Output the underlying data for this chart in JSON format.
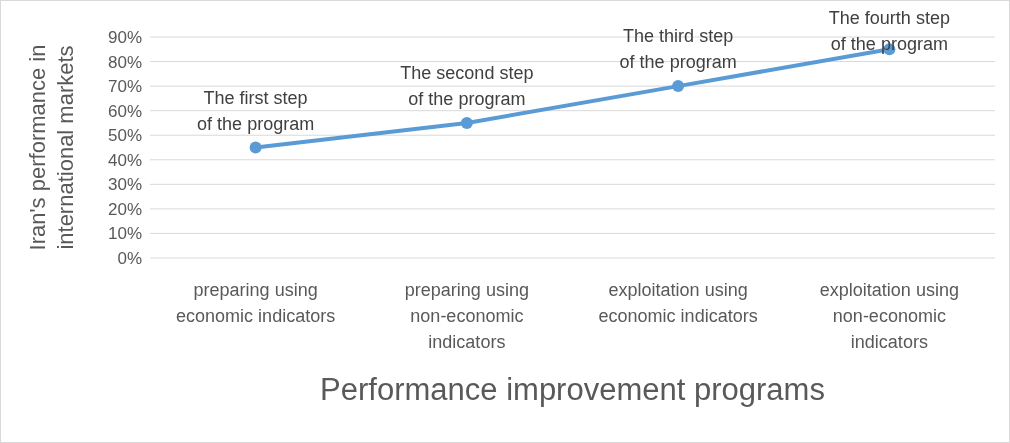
{
  "chart_data": {
    "type": "line",
    "xlabel": "Performance improvement programs",
    "ylabel": "Iran's performance in international markets",
    "categories": [
      "preparing using economic indicators",
      "preparing using non-economic indicators",
      "exploitation using economic indicators",
      "exploitation using non-economic indicators"
    ],
    "series": [
      {
        "color": "#5b9bd5",
        "values": [
          45,
          55,
          70,
          85
        ]
      }
    ],
    "ylim": [
      0,
      90
    ],
    "yticks": [
      {
        "value": 0,
        "label": "0%"
      },
      {
        "value": 10,
        "label": "10%"
      },
      {
        "value": 20,
        "label": "20%"
      },
      {
        "value": 30,
        "label": "30%"
      },
      {
        "value": 40,
        "label": "40%"
      },
      {
        "value": 50,
        "label": "50%"
      },
      {
        "value": 60,
        "label": "60%"
      },
      {
        "value": 70,
        "label": "70%"
      },
      {
        "value": 80,
        "label": "80%"
      },
      {
        "value": 90,
        "label": "90%"
      }
    ],
    "grid": "y",
    "marker": "circle",
    "line_style": "solid",
    "annotations": [
      {
        "text": "The first step of the program",
        "x": "preparing using economic indicators",
        "y": 45
      },
      {
        "text": "The second step of the program",
        "x": "preparing using non-economic indicators",
        "y": 55
      },
      {
        "text": "The third step of the program",
        "x": "exploitation using economic indicators",
        "y": 70
      },
      {
        "text": "The fourth step of the program",
        "x": "exploitation using non-economic indicators",
        "y": 85
      }
    ]
  }
}
